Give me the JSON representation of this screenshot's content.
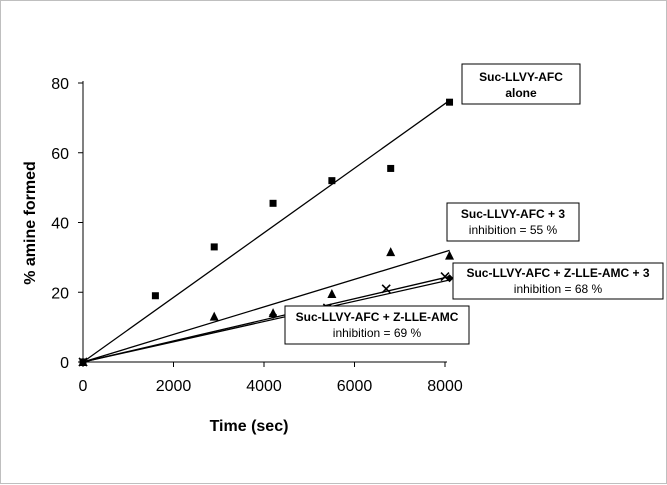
{
  "chart_data": {
    "type": "scatter",
    "title": "",
    "xlabel": "Time (sec)",
    "ylabel": "% amine formed",
    "xlim": [
      0,
      8000
    ],
    "ylim": [
      0,
      80
    ],
    "xticks": [
      "0",
      "2000",
      "4000",
      "6000",
      "8000"
    ],
    "yticks": [
      "0",
      "20",
      "40",
      "60",
      "80"
    ],
    "grid": false,
    "series": [
      {
        "name": "Suc-LLVY-AFC alone",
        "marker": "square",
        "x": [
          0,
          1600,
          2900,
          4200,
          5500,
          6800,
          8100
        ],
        "y": [
          0,
          19,
          33,
          45.5,
          52,
          55.5,
          74.5
        ],
        "fit": [
          [
            0,
            0
          ],
          [
            8100,
            75
          ]
        ]
      },
      {
        "name": "Suc-LLVY-AFC + 3",
        "marker": "triangle",
        "x": [
          0,
          2900,
          4200,
          5500,
          6800,
          8100
        ],
        "y": [
          0,
          13,
          14,
          19.5,
          31.5,
          30.5
        ],
        "fit": [
          [
            0,
            0
          ],
          [
            8100,
            32
          ]
        ]
      },
      {
        "name": "Suc-LLVY-AFC + Z-LLE-AMC + 3",
        "marker": "x",
        "x": [
          0,
          5400,
          6700,
          8000
        ],
        "y": [
          0,
          15.5,
          21,
          24.5
        ],
        "fit": [
          [
            0,
            0
          ],
          [
            8100,
            24.5
          ]
        ]
      },
      {
        "name": "Suc-LLVY-AFC + Z-LLE-AMC",
        "marker": "diamond",
        "x": [
          0,
          4200,
          8100
        ],
        "y": [
          0,
          13.5,
          24
        ],
        "fit": [
          [
            0,
            0
          ],
          [
            8100,
            23.5
          ]
        ]
      }
    ],
    "annotations": [
      {
        "line1": "Suc-LLVY-AFC",
        "line2": "alone"
      },
      {
        "line1": "Suc-LLVY-AFC + 3",
        "line2": "inhibition = 55 %"
      },
      {
        "line1": "Suc-LLVY-AFC + Z-LLE-AMC + 3",
        "line2": "inhibition = 68 %"
      },
      {
        "line1": "Suc-LLVY-AFC + Z-LLE-AMC",
        "line2": "inhibition = 69 %"
      }
    ]
  }
}
